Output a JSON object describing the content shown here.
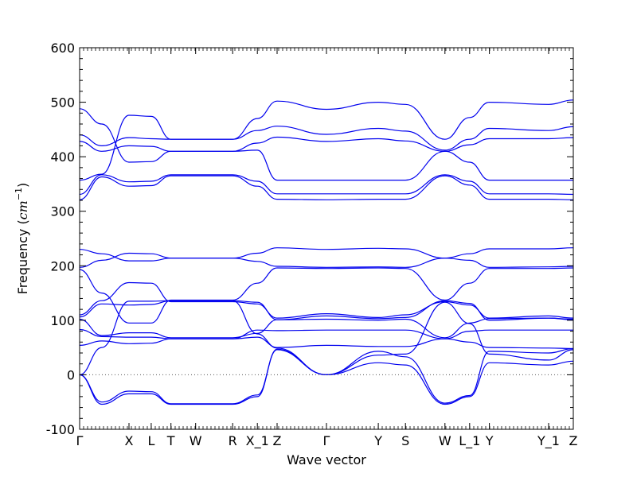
{
  "chart_data": {
    "type": "line",
    "xlabel": "Wave vector",
    "ylabel": "Frequency (cm⁻¹)",
    "ylabel_main": "Frequency (",
    "ylabel_unit": "cm",
    "ylabel_exp": "−1",
    "ylabel_close": ")",
    "ylim": [
      -100,
      600
    ],
    "yticks": [
      -100,
      0,
      100,
      200,
      300,
      400,
      500,
      600
    ],
    "grid": false,
    "legend": "none",
    "zero_line": {
      "y": 0,
      "style": "dotted"
    },
    "line_color": "#0000ee",
    "x_points": [
      {
        "label": "Γ",
        "x": 0.0
      },
      {
        "label": "X",
        "x": 1.0
      },
      {
        "label": "L",
        "x": 1.45
      },
      {
        "label": "T",
        "x": 1.85
      },
      {
        "label": "W",
        "x": 2.35
      },
      {
        "label": "R",
        "x": 3.1
      },
      {
        "label": "X_1",
        "x": 3.6
      },
      {
        "label": "Z",
        "x": 4.0
      },
      {
        "label": "Γ",
        "x": 5.0
      },
      {
        "label": "Y",
        "x": 6.05
      },
      {
        "label": "S",
        "x": 6.6
      },
      {
        "label": "W",
        "x": 7.4
      },
      {
        "label": "L_1",
        "x": 7.9
      },
      {
        "label": "Y",
        "x": 8.3
      },
      {
        "label": "Y_1",
        "x": 9.5
      },
      {
        "label": "Z",
        "x": 10.0
      }
    ],
    "series": [
      {
        "x": [
          0,
          0.45,
          1.0,
          1.45,
          1.85,
          2.35,
          3.1,
          3.6,
          4.0,
          5.0,
          6.05,
          6.6,
          7.4,
          7.9,
          8.3,
          9.5,
          10.0
        ],
        "values": [
          488,
          460,
          390,
          391,
          410,
          410,
          410,
          412,
          357,
          357,
          357,
          357,
          410,
          390,
          357,
          357,
          357
        ]
      },
      {
        "x": [
          0,
          0.45,
          1.0,
          1.45,
          1.85,
          2.35,
          3.1,
          3.6,
          4.0,
          5.0,
          6.05,
          6.6,
          7.4,
          7.9,
          8.3,
          9.5,
          10.0
        ],
        "values": [
          440,
          420,
          435,
          433,
          432,
          432,
          432,
          448,
          456,
          441,
          452,
          447,
          412,
          432,
          452,
          448,
          455
        ]
      },
      {
        "x": [
          0,
          0.45,
          1.0,
          1.45,
          1.85,
          2.35,
          3.1,
          3.6,
          4.0,
          5.0,
          6.05,
          6.6,
          7.4,
          7.9,
          8.3,
          9.5,
          10.0
        ],
        "values": [
          428,
          410,
          420,
          419,
          410,
          410,
          410,
          425,
          436,
          428,
          433,
          429,
          410,
          422,
          433,
          433,
          435
        ]
      },
      {
        "x": [
          0,
          0.45,
          1.0,
          1.45,
          1.85,
          2.35,
          3.1,
          3.6,
          4.0,
          5.0,
          6.05,
          6.6,
          7.4,
          7.9,
          8.3,
          9.5,
          10.0
        ],
        "values": [
          357,
          368,
          476,
          474,
          432,
          432,
          432,
          470,
          502,
          487,
          500,
          496,
          432,
          472,
          500,
          496,
          504
        ]
      },
      {
        "x": [
          0,
          0.45,
          1.0,
          1.45,
          1.85,
          2.35,
          3.1,
          3.6,
          4.0,
          5.0,
          6.05,
          6.6,
          7.4,
          7.9,
          8.3,
          9.5,
          10.0
        ],
        "values": [
          331,
          367,
          354,
          355,
          367,
          367,
          367,
          355,
          332,
          332,
          332,
          332,
          367,
          355,
          332,
          332,
          331
        ]
      },
      {
        "x": [
          0,
          0.45,
          1.0,
          1.45,
          1.85,
          2.35,
          3.1,
          3.6,
          4.0,
          5.0,
          6.05,
          6.6,
          7.4,
          7.9,
          8.3,
          9.5,
          10.0
        ],
        "values": [
          321,
          363,
          346,
          347,
          365,
          365,
          365,
          346,
          322,
          321,
          322,
          322,
          365,
          348,
          322,
          322,
          321
        ]
      },
      {
        "x": [
          0,
          0.45,
          1.0,
          1.45,
          1.85,
          2.35,
          3.1,
          3.6,
          4.0,
          5.0,
          6.05,
          6.6,
          7.4,
          7.9,
          8.3,
          9.5,
          10.0
        ],
        "values": [
          230,
          222,
          209,
          209,
          214,
          214,
          214,
          223,
          233,
          230,
          232,
          231,
          214,
          222,
          231,
          231,
          233
        ]
      },
      {
        "x": [
          0,
          0.45,
          1.0,
          1.45,
          1.85,
          2.35,
          3.1,
          3.6,
          4.0,
          5.0,
          6.05,
          6.6,
          7.4,
          7.9,
          8.3,
          9.5,
          10.0
        ],
        "values": [
          197,
          210,
          223,
          222,
          214,
          214,
          214,
          208,
          199,
          197,
          198,
          197,
          214,
          210,
          197,
          198,
          199
        ]
      },
      {
        "x": [
          0,
          0.45,
          1.0,
          1.45,
          1.85,
          2.35,
          3.1,
          3.6,
          4.0,
          5.0,
          6.05,
          6.6,
          7.4,
          7.9,
          8.3,
          9.5,
          10.0
        ],
        "values": [
          193,
          150,
          95,
          95,
          137,
          137,
          137,
          168,
          196,
          195,
          196,
          195,
          137,
          168,
          195,
          195,
          196
        ]
      },
      {
        "x": [
          0,
          0.45,
          1.0,
          1.45,
          1.85,
          2.35,
          3.1,
          3.6,
          4.0,
          5.0,
          6.05,
          6.6,
          7.4,
          7.9,
          8.3,
          9.5,
          10.0
        ],
        "values": [
          110,
          136,
          169,
          168,
          134,
          134,
          134,
          130,
          104,
          112,
          105,
          110,
          134,
          128,
          104,
          108,
          104
        ]
      },
      {
        "x": [
          0,
          0.45,
          1.0,
          1.45,
          1.85,
          2.35,
          3.1,
          3.6,
          4.0,
          5.0,
          6.05,
          6.6,
          7.4,
          7.9,
          8.3,
          9.5,
          10.0
        ],
        "values": [
          106,
          130,
          128,
          129,
          136,
          136,
          136,
          133,
          101,
          108,
          103,
          105,
          136,
          131,
          100,
          104,
          101
        ]
      },
      {
        "x": [
          0,
          0.45,
          1.0,
          1.45,
          1.85,
          2.35,
          3.1,
          3.6,
          4.0,
          5.0,
          6.05,
          6.6,
          7.4,
          7.9,
          8.3,
          9.5,
          10.0
        ],
        "values": [
          102,
          72,
          77,
          77,
          68,
          68,
          68,
          76,
          101,
          102,
          100,
          102,
          68,
          95,
          103,
          104,
          102
        ]
      },
      {
        "x": [
          0,
          0.45,
          1.0,
          1.45,
          1.85,
          2.35,
          3.1,
          3.6,
          4.0,
          5.0,
          6.05,
          6.6,
          7.4,
          7.9,
          8.3,
          9.5,
          10.0
        ],
        "values": [
          83,
          70,
          69,
          69,
          66,
          66,
          66,
          82,
          81,
          82,
          82,
          82,
          66,
          80,
          82,
          82,
          82
        ]
      },
      {
        "x": [
          0,
          0.45,
          1.0,
          1.45,
          1.85,
          2.35,
          3.1,
          3.6,
          4.0,
          5.0,
          6.05,
          6.6,
          7.4,
          7.9,
          8.3,
          9.5,
          10.0
        ],
        "values": [
          54,
          62,
          57,
          58,
          66,
          66,
          66,
          69,
          50,
          54,
          52,
          52,
          66,
          60,
          50,
          49,
          48
        ]
      },
      {
        "x": [
          0,
          0.45,
          1.0,
          1.45,
          1.85,
          2.35,
          3.1,
          3.6,
          4.0,
          5.0,
          6.05,
          6.6,
          7.4,
          7.9,
          8.3,
          9.5,
          10.0
        ],
        "values": [
          0,
          50,
          135,
          135,
          136,
          136,
          136,
          75,
          49,
          0,
          43,
          33,
          -52,
          -38,
          43,
          40,
          48
        ]
      },
      {
        "x": [
          0,
          0.45,
          1.0,
          1.45,
          1.85,
          2.35,
          3.1,
          3.6,
          4.0,
          5.0,
          6.05,
          6.6,
          7.4,
          7.9,
          8.3,
          9.5,
          10.0
        ],
        "values": [
          0,
          -50,
          -30,
          -31,
          -53,
          -53,
          -53,
          -37,
          46,
          0,
          36,
          38,
          133,
          94,
          38,
          27,
          46
        ]
      },
      {
        "x": [
          0,
          0.45,
          1.0,
          1.45,
          1.85,
          2.35,
          3.1,
          3.6,
          4.0,
          5.0,
          6.05,
          6.6,
          7.4,
          7.9,
          8.3,
          9.5,
          10.0
        ],
        "values": [
          0,
          -54,
          -35,
          -35,
          -54,
          -54,
          -54,
          -40,
          47,
          0,
          22,
          18,
          -54,
          -40,
          22,
          18,
          25
        ]
      }
    ]
  }
}
